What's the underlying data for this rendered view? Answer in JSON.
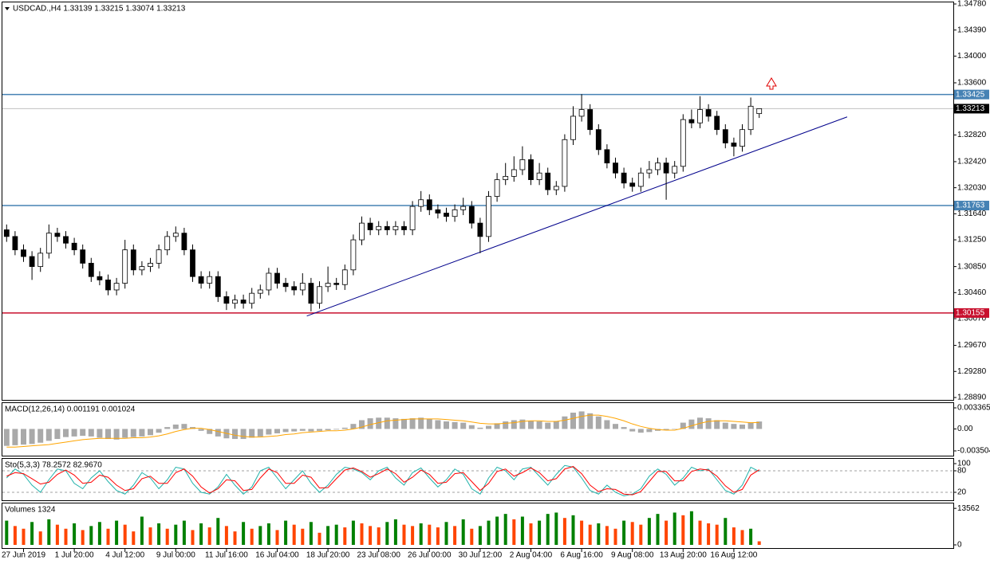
{
  "chart_data": [
    {
      "type": "candlestick",
      "header": "USDCAD.,H4  1.33139 1.33215 1.33074 1.33213",
      "ylim": [
        1.2889,
        1.3478
      ],
      "yticks": [
        {
          "value": 1.3478,
          "label": "1.34780"
        },
        {
          "value": 1.3439,
          "label": "1.34390"
        },
        {
          "value": 1.34,
          "label": "1.34000"
        },
        {
          "value": 1.336,
          "label": "1.33600"
        },
        {
          "value": 1.3282,
          "label": "1.32820"
        },
        {
          "value": 1.3242,
          "label": "1.32420"
        },
        {
          "value": 1.3203,
          "label": "1.32030"
        },
        {
          "value": 1.3164,
          "label": "1.31640"
        },
        {
          "value": 1.3125,
          "label": "1.31250"
        },
        {
          "value": 1.3085,
          "label": "1.30850"
        },
        {
          "value": 1.3046,
          "label": "1.30460"
        },
        {
          "value": 1.3007,
          "label": "1.30070"
        },
        {
          "value": 1.2967,
          "label": "1.29670"
        },
        {
          "value": 1.2928,
          "label": "1.29280"
        },
        {
          "value": 1.2889,
          "label": "1.28890"
        }
      ],
      "up_color": "#ffffff",
      "down_color": "#000000",
      "candles": {
        "open": [
          1.314,
          1.313,
          1.311,
          1.31,
          1.3085,
          1.3105,
          1.3135,
          1.313,
          1.312,
          1.311,
          1.309,
          1.307,
          1.3065,
          1.305,
          1.306,
          1.311,
          1.308,
          1.3085,
          1.309,
          1.311,
          1.313,
          1.3135,
          1.311,
          1.307,
          1.306,
          1.307,
          1.304,
          1.303,
          1.3035,
          1.303,
          1.3045,
          1.305,
          1.3075,
          1.306,
          1.3055,
          1.305,
          1.306,
          1.303,
          1.3055,
          1.306,
          1.3058,
          1.308,
          1.3125,
          1.315,
          1.314,
          1.3145,
          1.314,
          1.3145,
          1.314,
          1.3175,
          1.3185,
          1.317,
          1.3165,
          1.316,
          1.317,
          1.3175,
          1.315,
          1.313,
          1.319,
          1.3215,
          1.322,
          1.323,
          1.3245,
          1.3215,
          1.3225,
          1.32,
          1.3205,
          1.3275,
          1.331,
          1.332,
          1.329,
          1.326,
          1.324,
          1.3225,
          1.321,
          1.3205,
          1.3225,
          1.323,
          1.324,
          1.3225,
          1.3235,
          1.3305,
          1.33,
          1.332,
          1.331,
          1.329,
          1.327,
          1.3265,
          1.329,
          1.33139
        ],
        "high": [
          1.3148,
          1.3138,
          1.3118,
          1.3108,
          1.3113,
          1.3148,
          1.3143,
          1.3138,
          1.3128,
          1.3118,
          1.3098,
          1.3078,
          1.3073,
          1.3068,
          1.3125,
          1.3118,
          1.3093,
          1.3098,
          1.3118,
          1.3138,
          1.3145,
          1.3143,
          1.3118,
          1.3078,
          1.3078,
          1.3078,
          1.3048,
          1.3043,
          1.3043,
          1.3053,
          1.3058,
          1.3083,
          1.3083,
          1.3068,
          1.3063,
          1.3075,
          1.3068,
          1.3063,
          1.3085,
          1.3068,
          1.3088,
          1.3133,
          1.316,
          1.3158,
          1.3153,
          1.3153,
          1.3153,
          1.3153,
          1.3183,
          1.3198,
          1.3193,
          1.3178,
          1.3173,
          1.3178,
          1.3188,
          1.3183,
          1.3158,
          1.3198,
          1.3225,
          1.324,
          1.325,
          1.3265,
          1.3253,
          1.324,
          1.3233,
          1.3213,
          1.3283,
          1.3325,
          1.3343,
          1.3328,
          1.3298,
          1.3268,
          1.3248,
          1.3233,
          1.3218,
          1.3233,
          1.3243,
          1.3248,
          1.3248,
          1.3243,
          1.3313,
          1.332,
          1.334,
          1.3328,
          1.3318,
          1.3298,
          1.3278,
          1.3298,
          1.3338,
          1.33215
        ],
        "low": [
          1.3122,
          1.3102,
          1.3092,
          1.3065,
          1.3077,
          1.3097,
          1.3122,
          1.3112,
          1.3102,
          1.3082,
          1.3062,
          1.3057,
          1.3042,
          1.3042,
          1.3052,
          1.3072,
          1.3072,
          1.3077,
          1.3082,
          1.3102,
          1.3122,
          1.3102,
          1.3062,
          1.3052,
          1.3052,
          1.3032,
          1.302,
          1.3022,
          1.3022,
          1.3022,
          1.3037,
          1.3042,
          1.3052,
          1.3047,
          1.3042,
          1.3042,
          1.3018,
          1.3022,
          1.3047,
          1.305,
          1.305,
          1.3072,
          1.3117,
          1.3132,
          1.3132,
          1.3132,
          1.3132,
          1.3132,
          1.3132,
          1.3167,
          1.3162,
          1.3157,
          1.3152,
          1.3152,
          1.3162,
          1.3142,
          1.3105,
          1.3122,
          1.3182,
          1.3207,
          1.3212,
          1.3222,
          1.3207,
          1.3207,
          1.3192,
          1.3192,
          1.3197,
          1.3267,
          1.3302,
          1.3282,
          1.3252,
          1.3232,
          1.3217,
          1.3202,
          1.3197,
          1.3197,
          1.3217,
          1.3222,
          1.3185,
          1.3217,
          1.3227,
          1.3292,
          1.3292,
          1.3302,
          1.3282,
          1.3262,
          1.325,
          1.3257,
          1.3282,
          1.33074
        ],
        "close": [
          1.313,
          1.311,
          1.31,
          1.3085,
          1.3105,
          1.3135,
          1.313,
          1.312,
          1.311,
          1.309,
          1.307,
          1.3065,
          1.305,
          1.306,
          1.311,
          1.308,
          1.3085,
          1.309,
          1.311,
          1.313,
          1.3135,
          1.311,
          1.307,
          1.306,
          1.307,
          1.304,
          1.303,
          1.3035,
          1.303,
          1.3045,
          1.305,
          1.3075,
          1.306,
          1.3055,
          1.305,
          1.306,
          1.303,
          1.3055,
          1.306,
          1.3058,
          1.308,
          1.3125,
          1.315,
          1.314,
          1.3145,
          1.314,
          1.3145,
          1.314,
          1.3175,
          1.3185,
          1.317,
          1.3165,
          1.316,
          1.317,
          1.3175,
          1.315,
          1.313,
          1.319,
          1.3215,
          1.322,
          1.323,
          1.3245,
          1.3215,
          1.3225,
          1.32,
          1.3205,
          1.3275,
          1.331,
          1.332,
          1.329,
          1.326,
          1.324,
          1.3225,
          1.321,
          1.3205,
          1.3225,
          1.323,
          1.324,
          1.3225,
          1.3235,
          1.3305,
          1.33,
          1.332,
          1.331,
          1.329,
          1.327,
          1.3265,
          1.329,
          1.3325,
          1.33213
        ]
      },
      "levels": [
        {
          "value": 1.33425,
          "color": "#4682b4"
        },
        {
          "value": 1.31763,
          "color": "#4682b4"
        },
        {
          "value": 1.30155,
          "color": "#c8102e"
        }
      ],
      "trendline": {
        "x": [
          35.5,
          99.4
        ],
        "y": [
          1.3011,
          1.3309
        ],
        "color": "#00008b"
      }
    },
    {
      "type": "bar",
      "header": "MACD(12,26,14) 0.001191 0.001024",
      "ylim": [
        -0.003504,
        0.003365
      ],
      "yticks": [
        0.003365,
        {
          "value": 0,
          "label": "0.00"
        },
        -0.003504
      ],
      "series": [
        {
          "style": "bar",
          "color": "#a9a9a9",
          "values": [
            -0.0027,
            -0.0026,
            -0.0025,
            -0.0024,
            -0.0022,
            -0.0019,
            -0.0016,
            -0.0013,
            -0.0012,
            -0.0011,
            -0.0012,
            -0.0014,
            -0.0016,
            -0.0017,
            -0.0014,
            -0.0013,
            -0.0012,
            -0.001,
            -0.0006,
            0.0003,
            0.0007,
            0.0008,
            0.0003,
            -0.0003,
            -0.0008,
            -0.0012,
            -0.0015,
            -0.0016,
            -0.0016,
            -0.0014,
            -0.0012,
            -0.0009,
            -0.0007,
            -0.0005,
            -0.0004,
            -0.0003,
            -0.0004,
            -0.0003,
            -0.0002,
            -0.0001,
            0.0002,
            0.0008,
            0.0014,
            0.0017,
            0.0018,
            0.0018,
            0.0017,
            0.0016,
            0.0017,
            0.0018,
            0.0016,
            0.0014,
            0.0012,
            0.0011,
            0.001,
            0.0006,
            0.0002,
            0.0005,
            0.0009,
            0.0012,
            0.0014,
            0.0015,
            0.0013,
            0.0012,
            0.001,
            0.0012,
            0.002,
            0.0026,
            0.0028,
            0.0025,
            0.002,
            0.0014,
            0.0008,
            0.0003,
            -0.0004,
            -0.0006,
            -0.0005,
            -0.0003,
            -0.0002,
            0,
            0.001,
            0.0015,
            0.0018,
            0.0017,
            0.0014,
            0.001,
            0.0008,
            0.0007,
            0.001,
            0.001191
          ]
        },
        {
          "style": "line",
          "color": "#ffa500",
          "values": [
            -0.0029,
            -0.0029,
            -0.0028,
            -0.0027,
            -0.0026,
            -0.0025,
            -0.0023,
            -0.0021,
            -0.0019,
            -0.0017,
            -0.0016,
            -0.0015,
            -0.0015,
            -0.0015,
            -0.0015,
            -0.0014,
            -0.0014,
            -0.0013,
            -0.0011,
            -0.0008,
            -0.0004,
            -0.0001,
            0.0001,
            0.0001,
            -0.0001,
            -0.0004,
            -0.0007,
            -0.001,
            -0.0012,
            -0.0013,
            -0.0013,
            -0.0012,
            -0.0011,
            -0.0009,
            -0.0008,
            -0.0006,
            -0.0005,
            -0.0004,
            -0.0003,
            -0.0003,
            -0.0002,
            0,
            0.0003,
            0.0007,
            0.001,
            0.0013,
            0.0014,
            0.0015,
            0.0016,
            0.0016,
            0.0016,
            0.0016,
            0.0015,
            0.0014,
            0.0013,
            0.0011,
            0.0009,
            0.0008,
            0.0008,
            0.0009,
            0.001,
            0.0012,
            0.0013,
            0.0013,
            0.0012,
            0.0012,
            0.0014,
            0.0017,
            0.002,
            0.0022,
            0.0022,
            0.002,
            0.0017,
            0.0013,
            0.0008,
            0.0004,
            0.0001,
            -0.0001,
            -0.0002,
            -0.0002,
            0.0001,
            0.0005,
            0.0009,
            0.0012,
            0.0013,
            0.0013,
            0.0012,
            0.0011,
            0.001,
            0.001024
          ]
        }
      ]
    },
    {
      "type": "line",
      "header": "Sto(5,3,3) 78.2572 82.9670",
      "ylim": [
        0,
        100
      ],
      "yticks": [
        100,
        80,
        20
      ],
      "levels": [
        80,
        20
      ],
      "series": [
        {
          "color": "#20b2aa",
          "values": [
            60,
            85,
            70,
            40,
            20,
            55,
            85,
            80,
            45,
            30,
            60,
            80,
            50,
            25,
            15,
            40,
            75,
            60,
            30,
            55,
            90,
            85,
            45,
            20,
            15,
            35,
            70,
            40,
            15,
            35,
            80,
            90,
            60,
            30,
            55,
            80,
            45,
            20,
            40,
            70,
            90,
            85,
            75,
            55,
            80,
            90,
            60,
            40,
            75,
            88,
            60,
            35,
            55,
            85,
            70,
            30,
            15,
            60,
            90,
            80,
            55,
            85,
            90,
            65,
            40,
            70,
            95,
            90,
            60,
            25,
            15,
            40,
            20,
            10,
            15,
            30,
            65,
            85,
            70,
            40,
            60,
            90,
            80,
            85,
            55,
            25,
            15,
            40,
            90,
            78.2572
          ]
        },
        {
          "color": "#ff0000",
          "values": [
            65,
            75,
            72,
            58,
            43,
            48,
            70,
            82,
            68,
            45,
            48,
            68,
            62,
            40,
            25,
            30,
            58,
            65,
            45,
            45,
            75,
            85,
            65,
            35,
            18,
            30,
            55,
            52,
            25,
            28,
            60,
            85,
            75,
            45,
            45,
            68,
            62,
            32,
            33,
            58,
            82,
            88,
            78,
            62,
            72,
            85,
            72,
            48,
            62,
            82,
            70,
            45,
            48,
            72,
            75,
            50,
            25,
            45,
            78,
            85,
            65,
            75,
            88,
            75,
            52,
            58,
            85,
            92,
            72,
            40,
            22,
            30,
            28,
            15,
            13,
            22,
            50,
            78,
            78,
            52,
            52,
            78,
            85,
            82,
            65,
            38,
            20,
            28,
            68,
            82.967
          ]
        }
      ]
    },
    {
      "type": "volume",
      "header": "Volumes 1324",
      "ylim": [
        0,
        14500
      ],
      "yticks": [
        13562,
        0
      ],
      "up_color": "#008000",
      "down_color": "#ff4500",
      "values": [
        9000,
        7000,
        6000,
        8500,
        5000,
        9500,
        7500,
        6000,
        8000,
        5500,
        7000,
        8500,
        6000,
        9000,
        7500,
        5000,
        10500,
        6500,
        8000,
        6000,
        7500,
        9000,
        5500,
        8000,
        6500,
        10000,
        7000,
        5000,
        8500,
        6000,
        7000,
        8000,
        5500,
        9000,
        7500,
        6000,
        8500,
        4500,
        7000,
        7500,
        6500,
        9000,
        8000,
        7000,
        6500,
        8500,
        9500,
        7500,
        7000,
        8000,
        7500,
        6500,
        8500,
        7000,
        9500,
        6000,
        7000,
        9000,
        10500,
        11500,
        9500,
        10500,
        8000,
        9000,
        11500,
        12000,
        10000,
        11000,
        9000,
        7500,
        8000,
        7000,
        6000,
        9000,
        8500,
        7500,
        10000,
        11500,
        9000,
        12000,
        11000,
        12500,
        9000,
        8000,
        7500,
        10000,
        6500,
        5500,
        6000,
        1324
      ],
      "xticks": [
        {
          "value": 2,
          "label": "27 Jun 2019"
        },
        {
          "value": 8,
          "label": "1 Jul 20:00"
        },
        {
          "value": 14,
          "label": "4 Jul 12:00"
        },
        {
          "value": 20,
          "label": "9 Jul 00:00"
        },
        {
          "value": 26,
          "label": "11 Jul 16:00"
        },
        {
          "value": 32,
          "label": "16 Jul 04:00"
        },
        {
          "value": 38,
          "label": "18 Jul 20:00"
        },
        {
          "value": 44,
          "label": "23 Jul 08:00"
        },
        {
          "value": 50,
          "label": "26 Jul 00:00"
        },
        {
          "value": 56,
          "label": "30 Jul 12:00"
        },
        {
          "value": 62,
          "label": "2 Aug 04:00"
        },
        {
          "value": 68,
          "label": "6 Aug 16:00"
        },
        {
          "value": 74,
          "label": "9 Aug 08:00"
        },
        {
          "value": 80,
          "label": "13 Aug 20:00"
        },
        {
          "value": 86,
          "label": "16 Aug 12:00"
        }
      ]
    }
  ]
}
